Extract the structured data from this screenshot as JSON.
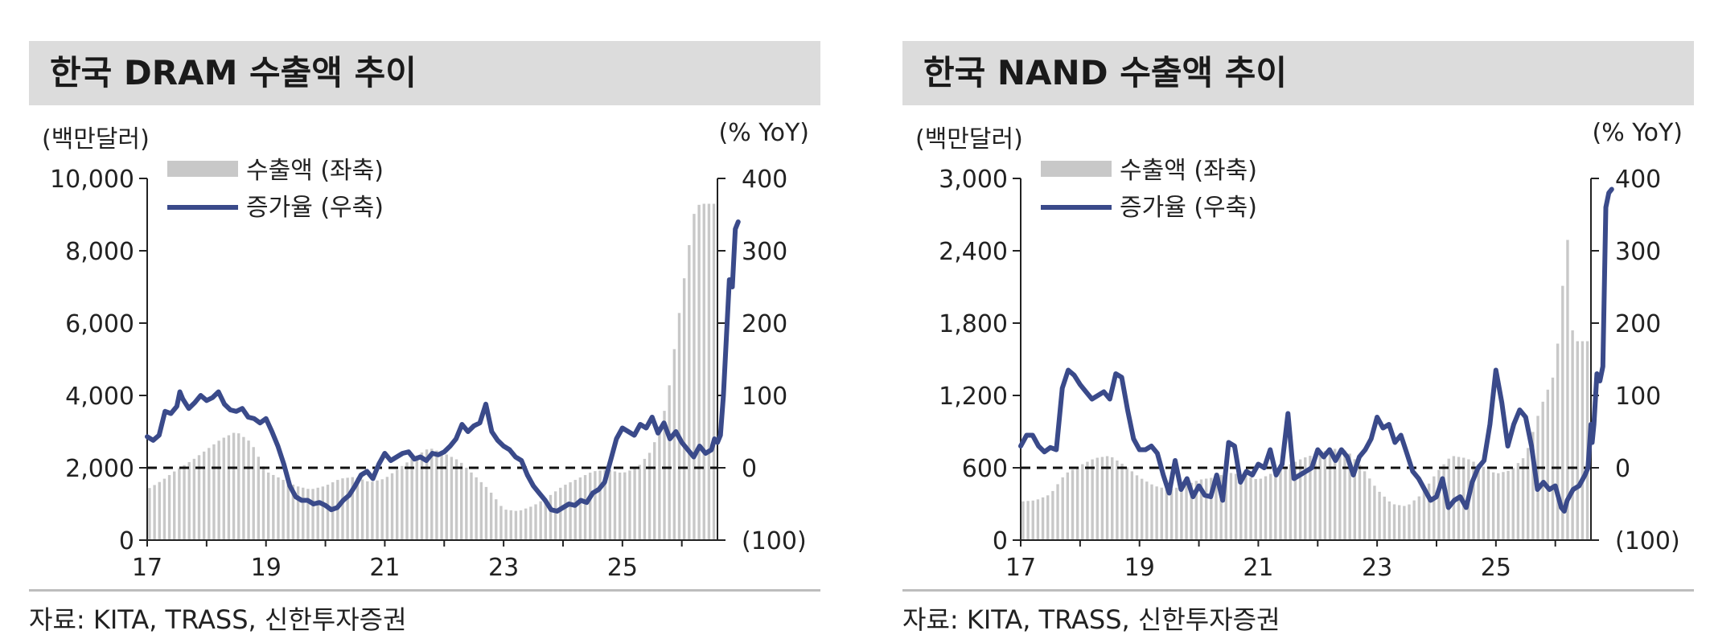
{
  "source": "자료: KITA, TRASS, 신한투자증권",
  "chart_data": [
    {
      "type": "bar+line",
      "title": "한국 DRAM 수출액 추이",
      "unit_left": "(백만달러)",
      "unit_right": "(% YoY)",
      "legend": {
        "bar": "수출액 (좌축)",
        "line": "증가율 (우축)",
        "position": "top-left"
      },
      "x_ticks": [
        "17",
        "19",
        "21",
        "23",
        "25"
      ],
      "x_range": [
        2017,
        2026.6
      ],
      "y_left": {
        "range": [
          0,
          10000
        ],
        "ticks": [
          "0",
          "2,000",
          "4,000",
          "6,000",
          "8,000",
          "10,000"
        ],
        "values": [
          0,
          2000,
          4000,
          6000,
          8000,
          10000
        ]
      },
      "y_right": {
        "range": [
          -100,
          400
        ],
        "ticks": [
          "(100)",
          "0",
          "100",
          "200",
          "300",
          "400"
        ],
        "values": [
          -100,
          0,
          100,
          200,
          300,
          400
        ]
      },
      "zero_line": 0,
      "bar_color": "#c8c8c8",
      "line_color": "#3a4a8a",
      "export_points": [
        [
          2017.0,
          1400
        ],
        [
          2017.25,
          1650
        ],
        [
          2017.5,
          1950
        ],
        [
          2017.75,
          2200
        ],
        [
          2018.0,
          2500
        ],
        [
          2018.25,
          2800
        ],
        [
          2018.5,
          3000
        ],
        [
          2018.75,
          2700
        ],
        [
          2019.0,
          1900
        ],
        [
          2019.25,
          1700
        ],
        [
          2019.5,
          1500
        ],
        [
          2019.75,
          1400
        ],
        [
          2020.0,
          1500
        ],
        [
          2020.25,
          1700
        ],
        [
          2020.5,
          1750
        ],
        [
          2020.75,
          1600
        ],
        [
          2021.0,
          1700
        ],
        [
          2021.25,
          2000
        ],
        [
          2021.5,
          2300
        ],
        [
          2021.75,
          2550
        ],
        [
          2022.0,
          2400
        ],
        [
          2022.25,
          2200
        ],
        [
          2022.5,
          1800
        ],
        [
          2022.75,
          1400
        ],
        [
          2023.0,
          850
        ],
        [
          2023.25,
          800
        ],
        [
          2023.5,
          950
        ],
        [
          2023.75,
          1200
        ],
        [
          2024.0,
          1500
        ],
        [
          2024.25,
          1700
        ],
        [
          2024.5,
          1900
        ],
        [
          2024.75,
          1950
        ],
        [
          2025.0,
          1850
        ],
        [
          2025.25,
          2000
        ],
        [
          2025.5,
          2500
        ],
        [
          2025.75,
          3800
        ],
        [
          2026.0,
          6800
        ],
        [
          2026.2,
          9000
        ],
        [
          2026.3,
          9300
        ]
      ],
      "growth_points": [
        [
          2017.0,
          43
        ],
        [
          2017.1,
          38
        ],
        [
          2017.2,
          45
        ],
        [
          2017.3,
          78
        ],
        [
          2017.4,
          75
        ],
        [
          2017.5,
          85
        ],
        [
          2017.55,
          105
        ],
        [
          2017.6,
          95
        ],
        [
          2017.7,
          82
        ],
        [
          2017.8,
          90
        ],
        [
          2017.9,
          100
        ],
        [
          2018.0,
          93
        ],
        [
          2018.1,
          97
        ],
        [
          2018.2,
          105
        ],
        [
          2018.3,
          88
        ],
        [
          2018.4,
          80
        ],
        [
          2018.5,
          78
        ],
        [
          2018.6,
          82
        ],
        [
          2018.7,
          70
        ],
        [
          2018.8,
          68
        ],
        [
          2018.9,
          62
        ],
        [
          2019.0,
          68
        ],
        [
          2019.1,
          50
        ],
        [
          2019.2,
          30
        ],
        [
          2019.3,
          5
        ],
        [
          2019.4,
          -25
        ],
        [
          2019.5,
          -40
        ],
        [
          2019.6,
          -45
        ],
        [
          2019.7,
          -45
        ],
        [
          2019.8,
          -50
        ],
        [
          2019.9,
          -48
        ],
        [
          2020.0,
          -52
        ],
        [
          2020.1,
          -58
        ],
        [
          2020.2,
          -55
        ],
        [
          2020.3,
          -45
        ],
        [
          2020.4,
          -38
        ],
        [
          2020.5,
          -25
        ],
        [
          2020.6,
          -10
        ],
        [
          2020.7,
          -5
        ],
        [
          2020.8,
          -15
        ],
        [
          2020.9,
          5
        ],
        [
          2021.0,
          20
        ],
        [
          2021.1,
          10
        ],
        [
          2021.2,
          15
        ],
        [
          2021.3,
          20
        ],
        [
          2021.4,
          22
        ],
        [
          2021.5,
          12
        ],
        [
          2021.6,
          15
        ],
        [
          2021.7,
          10
        ],
        [
          2021.8,
          20
        ],
        [
          2021.9,
          18
        ],
        [
          2022.0,
          22
        ],
        [
          2022.1,
          30
        ],
        [
          2022.2,
          40
        ],
        [
          2022.3,
          60
        ],
        [
          2022.4,
          50
        ],
        [
          2022.5,
          58
        ],
        [
          2022.6,
          62
        ],
        [
          2022.7,
          88
        ],
        [
          2022.8,
          50
        ],
        [
          2022.9,
          38
        ],
        [
          2023.0,
          30
        ],
        [
          2023.1,
          25
        ],
        [
          2023.2,
          15
        ],
        [
          2023.3,
          10
        ],
        [
          2023.4,
          -10
        ],
        [
          2023.5,
          -25
        ],
        [
          2023.6,
          -35
        ],
        [
          2023.7,
          -45
        ],
        [
          2023.8,
          -58
        ],
        [
          2023.9,
          -60
        ],
        [
          2024.0,
          -55
        ],
        [
          2024.1,
          -50
        ],
        [
          2024.2,
          -52
        ],
        [
          2024.3,
          -45
        ],
        [
          2024.4,
          -48
        ],
        [
          2024.5,
          -35
        ],
        [
          2024.6,
          -30
        ],
        [
          2024.7,
          -20
        ],
        [
          2024.8,
          10
        ],
        [
          2024.9,
          40
        ],
        [
          2025.0,
          55
        ],
        [
          2025.1,
          50
        ],
        [
          2025.2,
          45
        ],
        [
          2025.3,
          60
        ],
        [
          2025.4,
          55
        ],
        [
          2025.5,
          70
        ],
        [
          2025.6,
          48
        ],
        [
          2025.7,
          62
        ],
        [
          2025.8,
          40
        ],
        [
          2025.9,
          50
        ],
        [
          2026.0,
          35
        ],
        [
          2026.1,
          25
        ],
        [
          2026.2,
          15
        ],
        [
          2026.3,
          30
        ],
        [
          2026.4,
          20
        ],
        [
          2026.5,
          25
        ],
        [
          2026.55,
          40
        ],
        [
          2026.6,
          35
        ],
        [
          2026.65,
          45
        ],
        [
          2026.7,
          100
        ],
        [
          2026.75,
          180
        ],
        [
          2026.8,
          260
        ],
        [
          2026.85,
          250
        ],
        [
          2026.9,
          330
        ],
        [
          2026.95,
          340
        ]
      ]
    },
    {
      "type": "bar+line",
      "title": "한국 NAND 수출액 추이",
      "unit_left": "(백만달러)",
      "unit_right": "(% YoY)",
      "legend": {
        "bar": "수출액 (좌축)",
        "line": "증가율 (우축)",
        "position": "top-left"
      },
      "x_ticks": [
        "17",
        "19",
        "21",
        "23",
        "25"
      ],
      "x_range": [
        2017,
        2026.6
      ],
      "y_left": {
        "range": [
          0,
          3000
        ],
        "ticks": [
          "0",
          "600",
          "1,200",
          "1,800",
          "2,400",
          "3,000"
        ],
        "values": [
          0,
          600,
          1200,
          1800,
          2400,
          3000
        ]
      },
      "y_right": {
        "range": [
          -100,
          400
        ],
        "ticks": [
          "(100)",
          "0",
          "100",
          "200",
          "300",
          "400"
        ],
        "values": [
          -100,
          0,
          100,
          200,
          300,
          400
        ]
      },
      "zero_line": 0,
      "bar_color": "#c8c8c8",
      "line_color": "#3a4a8a",
      "export_points": [
        [
          2017.0,
          320
        ],
        [
          2017.25,
          330
        ],
        [
          2017.5,
          380
        ],
        [
          2017.75,
          550
        ],
        [
          2018.0,
          620
        ],
        [
          2018.25,
          680
        ],
        [
          2018.5,
          700
        ],
        [
          2018.75,
          620
        ],
        [
          2019.0,
          520
        ],
        [
          2019.25,
          450
        ],
        [
          2019.5,
          420
        ],
        [
          2019.75,
          450
        ],
        [
          2020.0,
          500
        ],
        [
          2020.25,
          520
        ],
        [
          2020.5,
          560
        ],
        [
          2020.75,
          540
        ],
        [
          2021.0,
          500
        ],
        [
          2021.25,
          560
        ],
        [
          2021.5,
          620
        ],
        [
          2021.75,
          680
        ],
        [
          2022.0,
          720
        ],
        [
          2022.25,
          760
        ],
        [
          2022.5,
          740
        ],
        [
          2022.75,
          600
        ],
        [
          2023.0,
          420
        ],
        [
          2023.25,
          300
        ],
        [
          2023.5,
          280
        ],
        [
          2023.75,
          380
        ],
        [
          2024.0,
          560
        ],
        [
          2024.25,
          700
        ],
        [
          2024.5,
          680
        ],
        [
          2024.75,
          620
        ],
        [
          2025.0,
          550
        ],
        [
          2025.25,
          580
        ],
        [
          2025.5,
          700
        ],
        [
          2025.75,
          1100
        ],
        [
          2026.0,
          1400
        ],
        [
          2026.2,
          2550
        ],
        [
          2026.3,
          1650
        ]
      ],
      "growth_points": [
        [
          2017.0,
          30
        ],
        [
          2017.1,
          45
        ],
        [
          2017.2,
          45
        ],
        [
          2017.3,
          30
        ],
        [
          2017.4,
          22
        ],
        [
          2017.5,
          28
        ],
        [
          2017.6,
          25
        ],
        [
          2017.7,
          110
        ],
        [
          2017.8,
          135
        ],
        [
          2017.9,
          128
        ],
        [
          2018.0,
          115
        ],
        [
          2018.1,
          105
        ],
        [
          2018.2,
          95
        ],
        [
          2018.3,
          100
        ],
        [
          2018.4,
          105
        ],
        [
          2018.5,
          95
        ],
        [
          2018.6,
          130
        ],
        [
          2018.7,
          125
        ],
        [
          2018.8,
          80
        ],
        [
          2018.9,
          40
        ],
        [
          2019.0,
          25
        ],
        [
          2019.1,
          25
        ],
        [
          2019.2,
          30
        ],
        [
          2019.3,
          20
        ],
        [
          2019.4,
          -10
        ],
        [
          2019.5,
          -35
        ],
        [
          2019.6,
          10
        ],
        [
          2019.7,
          -30
        ],
        [
          2019.8,
          -15
        ],
        [
          2019.9,
          -40
        ],
        [
          2020.0,
          -25
        ],
        [
          2020.1,
          -38
        ],
        [
          2020.2,
          -40
        ],
        [
          2020.3,
          -10
        ],
        [
          2020.4,
          -45
        ],
        [
          2020.5,
          35
        ],
        [
          2020.6,
          30
        ],
        [
          2020.7,
          -20
        ],
        [
          2020.8,
          -5
        ],
        [
          2020.9,
          -10
        ],
        [
          2021.0,
          5
        ],
        [
          2021.1,
          0
        ],
        [
          2021.2,
          25
        ],
        [
          2021.3,
          -10
        ],
        [
          2021.4,
          5
        ],
        [
          2021.5,
          75
        ],
        [
          2021.6,
          -15
        ],
        [
          2021.7,
          -10
        ],
        [
          2021.8,
          -5
        ],
        [
          2021.9,
          0
        ],
        [
          2022.0,
          25
        ],
        [
          2022.1,
          15
        ],
        [
          2022.2,
          25
        ],
        [
          2022.3,
          10
        ],
        [
          2022.4,
          25
        ],
        [
          2022.5,
          15
        ],
        [
          2022.6,
          -10
        ],
        [
          2022.7,
          15
        ],
        [
          2022.8,
          25
        ],
        [
          2022.9,
          40
        ],
        [
          2023.0,
          70
        ],
        [
          2023.1,
          55
        ],
        [
          2023.2,
          60
        ],
        [
          2023.3,
          35
        ],
        [
          2023.4,
          45
        ],
        [
          2023.5,
          20
        ],
        [
          2023.6,
          -5
        ],
        [
          2023.7,
          -15
        ],
        [
          2023.8,
          -30
        ],
        [
          2023.9,
          -45
        ],
        [
          2024.0,
          -40
        ],
        [
          2024.1,
          -15
        ],
        [
          2024.2,
          -55
        ],
        [
          2024.3,
          -45
        ],
        [
          2024.4,
          -40
        ],
        [
          2024.5,
          -55
        ],
        [
          2024.6,
          -20
        ],
        [
          2024.7,
          0
        ],
        [
          2024.8,
          10
        ],
        [
          2024.9,
          60
        ],
        [
          2025.0,
          135
        ],
        [
          2025.1,
          90
        ],
        [
          2025.2,
          30
        ],
        [
          2025.3,
          60
        ],
        [
          2025.4,
          80
        ],
        [
          2025.5,
          70
        ],
        [
          2025.6,
          30
        ],
        [
          2025.7,
          -30
        ],
        [
          2025.8,
          -20
        ],
        [
          2025.9,
          -30
        ],
        [
          2026.0,
          -25
        ],
        [
          2026.05,
          -40
        ],
        [
          2026.1,
          -55
        ],
        [
          2026.15,
          -60
        ],
        [
          2026.2,
          -45
        ],
        [
          2026.3,
          -30
        ],
        [
          2026.4,
          -25
        ],
        [
          2026.5,
          -10
        ],
        [
          2026.55,
          0
        ],
        [
          2026.6,
          60
        ],
        [
          2026.62,
          35
        ],
        [
          2026.65,
          60
        ],
        [
          2026.7,
          130
        ],
        [
          2026.75,
          120
        ],
        [
          2026.8,
          140
        ],
        [
          2026.85,
          360
        ],
        [
          2026.9,
          380
        ],
        [
          2026.95,
          385
        ]
      ]
    }
  ]
}
